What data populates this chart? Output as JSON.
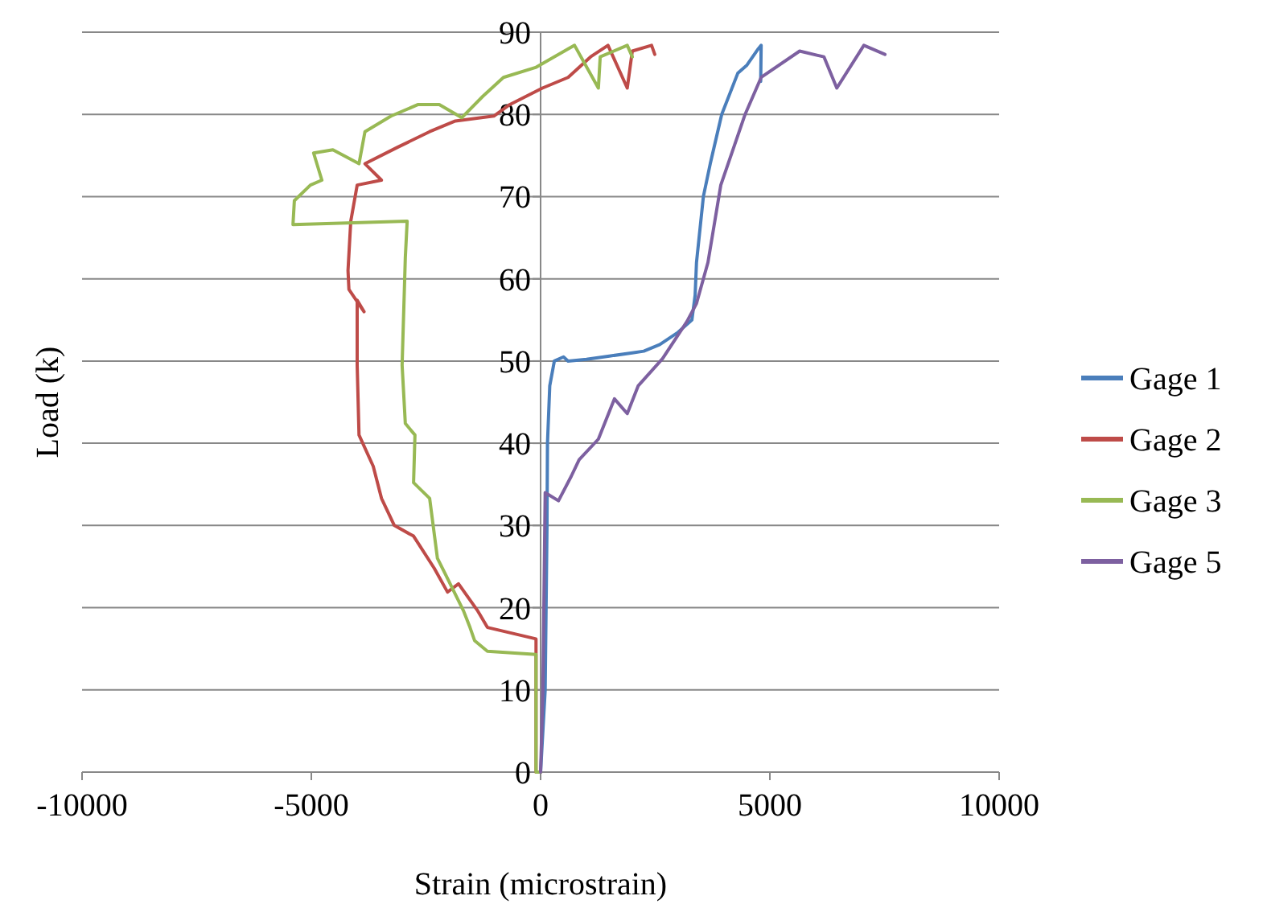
{
  "chart_data": {
    "type": "line",
    "xlabel": "Strain (microstrain)",
    "ylabel": "Load (k)",
    "xlim": [
      -10000,
      10000
    ],
    "xticks": [
      -10000,
      -5000,
      0,
      5000,
      10000
    ],
    "ylim": [
      0,
      90
    ],
    "yticks": [
      0,
      10,
      20,
      30,
      40,
      50,
      60,
      70,
      80,
      90
    ],
    "grid": "y",
    "legend": "right",
    "marker": "none",
    "line_style": "solid",
    "series": [
      {
        "name": "Gage 1",
        "color": "#4a7ebb",
        "x": [
          0,
          100,
          140,
          150,
          200,
          300,
          500,
          600,
          1000,
          1500,
          2000,
          2250,
          2600,
          3000,
          3300,
          3370,
          3400,
          3550,
          3700,
          3950,
          4300,
          4500,
          4750,
          4810,
          4800
        ],
        "values": [
          0,
          10,
          30,
          40,
          47,
          50,
          50.5,
          50,
          50.2,
          50.6,
          51,
          51.2,
          52,
          53.5,
          55,
          58,
          62,
          70,
          74,
          80,
          85,
          86,
          88,
          88.4,
          84
        ]
      },
      {
        "name": "Gage 2",
        "color": "#be4b48",
        "x": [
          0,
          -100,
          -100,
          -1160,
          -1370,
          -1790,
          -2030,
          -2320,
          -2770,
          -3190,
          -3470,
          -3650,
          -3960,
          -4000,
          -4000,
          -3850,
          -4180,
          -4200,
          -4140,
          -4000,
          -3470,
          -3830,
          -3120,
          -2420,
          -1860,
          -1020,
          -670,
          40,
          600,
          1090,
          1470,
          1890,
          2000,
          2420,
          2490
        ],
        "values": [
          0,
          0,
          16.2,
          17.6,
          19.6,
          22.9,
          21.9,
          24.8,
          28.7,
          30,
          33.3,
          37.2,
          41,
          49.5,
          57.4,
          56,
          58.7,
          61,
          67,
          71.4,
          72,
          74,
          76,
          77.9,
          79.2,
          79.8,
          81.2,
          83.2,
          84.5,
          87,
          88.4,
          83.2,
          87.7,
          88.4,
          87.3
        ]
      },
      {
        "name": "Gage 3",
        "color": "#98b954",
        "x": [
          0,
          -100,
          -100,
          -1160,
          -1440,
          -1540,
          -1680,
          -2070,
          -2250,
          -2420,
          -2770,
          -2740,
          -2950,
          -3020,
          -2950,
          -2910,
          -5400,
          -5370,
          -5020,
          -4770,
          -4950,
          -4530,
          -3960,
          -3830,
          -3260,
          -2670,
          -2210,
          -1720,
          -1260,
          -810,
          -110,
          740,
          1260,
          1300,
          1890,
          2000
        ],
        "values": [
          0,
          0,
          14.3,
          14.7,
          16,
          17.6,
          19.6,
          24,
          26,
          33.3,
          35.2,
          41,
          42.4,
          49.5,
          62.6,
          67,
          66.6,
          69.5,
          71.4,
          72,
          75.3,
          75.7,
          74,
          77.9,
          79.8,
          81.2,
          81.2,
          79.6,
          82.2,
          84.5,
          85.7,
          88.4,
          83.2,
          87,
          88.4,
          87
        ]
      },
      {
        "name": "Gage 5",
        "color": "#7d60a0",
        "x": [
          0,
          50,
          100,
          390,
          670,
          840,
          1260,
          1610,
          1890,
          2130,
          2660,
          3190,
          3400,
          3650,
          3930,
          4460,
          4810,
          5650,
          6180,
          6460,
          7050,
          7510
        ],
        "values": [
          0,
          10,
          34,
          33,
          36,
          38,
          40.5,
          45.4,
          43.6,
          47,
          50.3,
          54.8,
          57,
          62,
          71.4,
          80,
          84.5,
          87.7,
          87,
          83.2,
          88.4,
          87.3
        ]
      }
    ]
  }
}
